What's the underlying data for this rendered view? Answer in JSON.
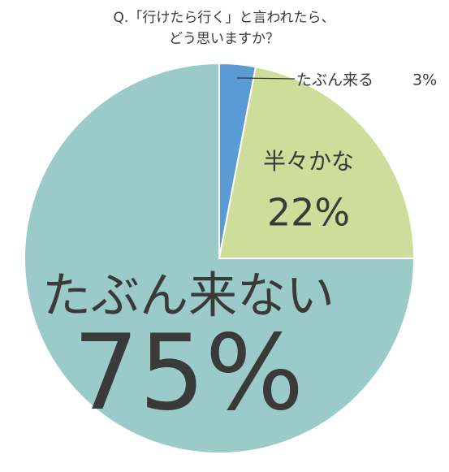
{
  "chart_data": {
    "type": "pie",
    "title": [
      "Q.「行けたら行く」と言われたら、",
      "どう思いますか？"
    ],
    "categories": [
      "たぶん来る",
      "半々かな",
      "たぶん来ない"
    ],
    "values": [
      3,
      22,
      75
    ],
    "value_labels": [
      "3%",
      "22%",
      "75%"
    ],
    "colors": [
      "#5a9bd6",
      "#cfdd9b",
      "#9acbc9"
    ]
  }
}
